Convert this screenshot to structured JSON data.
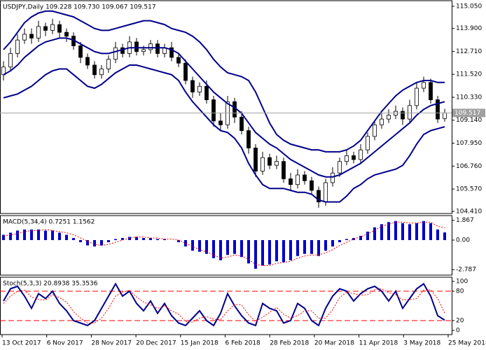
{
  "chart_data": [
    {
      "type": "candlestick",
      "title": "USDJPY,Daily  109.228 109.730 109.067 109.517",
      "open": [
        111.5,
        111.9,
        112.6,
        113.3,
        113.6,
        113.4,
        114.0,
        113.8,
        114.1,
        113.7,
        113.5,
        113.0,
        112.4,
        112.0,
        111.5,
        111.8,
        112.3,
        112.9,
        112.6,
        113.2,
        112.7,
        112.8,
        113.1,
        112.6,
        112.9,
        112.4,
        112.1,
        111.2,
        110.6,
        110.9,
        110.2,
        109.1,
        108.9,
        110.1,
        109.3,
        108.6,
        107.7,
        106.5,
        107.2,
        106.8,
        107.0,
        106.1,
        105.8,
        106.3,
        106.0,
        105.5,
        104.9,
        105.9,
        106.4,
        107.0,
        107.3,
        107.1,
        107.6,
        108.3,
        108.9,
        109.2,
        109.4,
        109.6,
        109.2,
        109.9,
        110.8,
        111.1,
        110.2,
        109.228
      ],
      "high": [
        112.2,
        112.9,
        113.6,
        113.9,
        113.9,
        114.3,
        114.2,
        114.4,
        114.3,
        113.9,
        113.7,
        113.2,
        112.6,
        112.2,
        112.0,
        112.5,
        113.2,
        113.1,
        113.5,
        113.4,
        113.0,
        113.3,
        113.3,
        113.1,
        113.2,
        112.6,
        112.3,
        111.4,
        111.1,
        111.2,
        110.4,
        109.5,
        110.4,
        110.3,
        109.6,
        108.8,
        107.9,
        107.5,
        107.4,
        107.3,
        107.2,
        106.4,
        106.6,
        106.5,
        106.2,
        105.7,
        106.1,
        106.7,
        107.2,
        107.6,
        107.5,
        107.9,
        108.5,
        109.1,
        109.5,
        109.7,
        109.9,
        109.8,
        110.2,
        111.1,
        111.4,
        111.3,
        110.4,
        109.73
      ],
      "low": [
        111.2,
        111.7,
        112.4,
        113.1,
        113.1,
        113.2,
        113.5,
        113.6,
        113.4,
        113.2,
        112.8,
        112.1,
        111.8,
        111.3,
        111.3,
        111.6,
        112.1,
        112.4,
        112.4,
        112.5,
        112.5,
        112.6,
        112.4,
        112.4,
        112.2,
        111.9,
        111.0,
        110.3,
        110.4,
        110.0,
        108.8,
        108.6,
        108.7,
        109.0,
        108.4,
        107.4,
        106.2,
        106.3,
        106.6,
        106.6,
        105.9,
        105.5,
        105.6,
        105.8,
        105.3,
        104.6,
        104.7,
        105.7,
        106.2,
        106.8,
        106.9,
        106.9,
        107.4,
        108.1,
        108.7,
        109.0,
        109.2,
        108.9,
        109.0,
        109.7,
        110.6,
        110.0,
        109.0,
        109.067
      ],
      "close": [
        111.9,
        112.6,
        113.3,
        113.6,
        113.4,
        114.0,
        113.8,
        114.1,
        113.7,
        113.5,
        113.0,
        112.4,
        112.0,
        111.5,
        111.8,
        112.3,
        112.9,
        112.6,
        113.2,
        112.7,
        112.8,
        113.1,
        112.6,
        112.9,
        112.4,
        112.1,
        111.2,
        110.6,
        110.9,
        110.2,
        109.1,
        108.9,
        110.1,
        109.3,
        108.6,
        107.7,
        106.5,
        107.2,
        106.8,
        107.0,
        106.1,
        105.8,
        106.3,
        106.0,
        105.5,
        104.9,
        105.9,
        106.4,
        107.0,
        107.3,
        107.1,
        107.6,
        108.3,
        108.9,
        109.2,
        109.4,
        109.6,
        109.2,
        109.9,
        110.8,
        111.1,
        110.2,
        109.2,
        109.517
      ],
      "up_color": "#ffffff",
      "down_color": "#000000",
      "series": [
        {
          "color": "#00008b",
          "values": [
            112.8,
            113.2,
            113.7,
            114.2,
            114.5,
            114.7,
            114.8,
            114.8,
            114.7,
            114.6,
            114.5,
            114.3,
            114.1,
            113.9,
            113.8,
            113.8,
            113.9,
            114.0,
            114.1,
            114.2,
            114.3,
            114.3,
            114.2,
            114.1,
            113.9,
            113.8,
            113.7,
            113.5,
            113.2,
            112.8,
            112.3,
            111.9,
            111.6,
            111.5,
            111.4,
            111.2,
            110.6,
            109.8,
            109.0,
            108.4,
            108.1,
            107.9,
            107.8,
            107.7,
            107.6,
            107.6,
            107.5,
            107.5,
            107.5,
            107.6,
            107.8,
            108.1,
            108.6,
            109.1,
            109.6,
            110.0,
            110.4,
            110.7,
            110.9,
            111.1,
            111.2,
            111.2,
            111.1,
            111.1
          ]
        },
        {
          "color": "#00008b",
          "values": [
            111.5,
            111.7,
            112.0,
            112.4,
            112.7,
            113.0,
            113.2,
            113.3,
            113.4,
            113.4,
            113.3,
            113.1,
            112.9,
            112.7,
            112.6,
            112.6,
            112.7,
            112.8,
            112.9,
            112.9,
            112.9,
            112.9,
            112.9,
            112.9,
            112.8,
            112.6,
            112.2,
            111.8,
            111.4,
            111.0,
            110.6,
            110.3,
            110.0,
            109.8,
            109.5,
            109.0,
            108.5,
            108.2,
            107.9,
            107.7,
            107.4,
            107.1,
            106.9,
            106.7,
            106.5,
            106.3,
            106.2,
            106.2,
            106.3,
            106.5,
            106.7,
            106.9,
            107.2,
            107.5,
            107.8,
            108.1,
            108.4,
            108.7,
            109.0,
            109.4,
            109.7,
            109.9,
            110.0,
            110.1
          ]
        },
        {
          "color": "#00008b",
          "values": [
            110.3,
            110.4,
            110.5,
            110.7,
            110.9,
            111.2,
            111.5,
            111.7,
            111.8,
            111.8,
            111.5,
            111.2,
            110.9,
            110.8,
            111.0,
            111.3,
            111.6,
            111.8,
            112.0,
            112.0,
            111.9,
            111.8,
            111.7,
            111.6,
            111.5,
            111.2,
            110.6,
            110.1,
            109.7,
            109.3,
            108.9,
            108.6,
            108.5,
            108.2,
            107.7,
            106.9,
            106.3,
            105.8,
            105.6,
            105.6,
            105.6,
            105.5,
            105.4,
            105.4,
            105.3,
            105.0,
            104.9,
            104.9,
            104.9,
            105.2,
            105.6,
            105.8,
            106.1,
            106.3,
            106.4,
            106.5,
            106.6,
            106.8,
            107.3,
            107.9,
            108.4,
            108.6,
            108.7,
            108.8
          ]
        }
      ],
      "last_price": 109.517,
      "ylim": [
        104.3,
        115.34
      ],
      "yticks": [
        {
          "value": 115.05,
          "label": "115.050"
        },
        {
          "value": 113.9,
          "label": "113.900"
        },
        {
          "value": 112.71,
          "label": "112.710"
        },
        {
          "value": 111.52,
          "label": "111.520"
        },
        {
          "value": 110.33,
          "label": "110.330"
        },
        {
          "value": 109.14,
          "label": "109.140"
        },
        {
          "value": 107.95,
          "label": "107.950"
        },
        {
          "value": 106.76,
          "label": "106.760"
        },
        {
          "value": 105.57,
          "label": "105.570"
        },
        {
          "value": 104.41,
          "label": "104.410"
        }
      ]
    },
    {
      "type": "bar",
      "title": "MACD(5,34,4) 0.7251 1.1562",
      "color": "#0000cd",
      "values": [
        0.5,
        0.7,
        0.9,
        1.0,
        1.0,
        1.0,
        0.9,
        0.9,
        0.7,
        0.5,
        0.2,
        -0.2,
        -0.5,
        -0.6,
        -0.5,
        -0.2,
        0.1,
        0.2,
        0.3,
        0.3,
        0.2,
        0.2,
        0.1,
        0.1,
        0.0,
        -0.2,
        -0.6,
        -1.0,
        -1.1,
        -1.3,
        -1.7,
        -1.9,
        -1.4,
        -1.3,
        -1.6,
        -2.2,
        -2.7,
        -2.4,
        -2.3,
        -2.0,
        -2.1,
        -1.9,
        -1.5,
        -1.3,
        -1.3,
        -1.5,
        -1.0,
        -0.6,
        -0.2,
        0.1,
        0.2,
        0.4,
        0.8,
        1.2,
        1.5,
        1.7,
        1.8,
        1.6,
        1.5,
        1.6,
        1.8,
        1.6,
        1.0,
        0.7251
      ],
      "series": [
        {
          "color": "#ff0000",
          "style": "dotted",
          "values": [
            0.4,
            0.5,
            0.6,
            0.8,
            0.9,
            0.9,
            1.0,
            0.9,
            0.8,
            0.7,
            0.5,
            0.2,
            -0.1,
            -0.4,
            -0.5,
            -0.4,
            -0.2,
            0.0,
            0.2,
            0.3,
            0.3,
            0.2,
            0.2,
            0.1,
            0.1,
            0.0,
            -0.3,
            -0.6,
            -0.9,
            -1.1,
            -1.4,
            -1.7,
            -1.6,
            -1.4,
            -1.5,
            -1.8,
            -2.3,
            -2.4,
            -2.4,
            -2.2,
            -2.1,
            -2.0,
            -1.7,
            -1.5,
            -1.4,
            -1.4,
            -1.2,
            -0.9,
            -0.5,
            -0.2,
            0.1,
            0.3,
            0.6,
            0.9,
            1.3,
            1.5,
            1.7,
            1.7,
            1.6,
            1.6,
            1.7,
            1.7,
            1.3,
            1.1562
          ]
        }
      ],
      "ylim": [
        -3.3,
        2.31
      ],
      "yticks": [
        1.867,
        {
          "value": 0,
          "label": "0.00"
        },
        -2.787
      ]
    },
    {
      "type": "line",
      "title": "Stoch(5,3,3) 20.8938 35.3536",
      "series": [
        {
          "color": "#00008b",
          "values": [
            60,
            85,
            90,
            70,
            45,
            75,
            65,
            80,
            55,
            40,
            20,
            15,
            10,
            20,
            45,
            70,
            95,
            70,
            80,
            55,
            40,
            60,
            35,
            55,
            30,
            15,
            10,
            25,
            40,
            20,
            10,
            35,
            75,
            50,
            30,
            15,
            10,
            55,
            45,
            40,
            15,
            20,
            55,
            45,
            20,
            10,
            45,
            70,
            85,
            80,
            60,
            75,
            85,
            90,
            80,
            60,
            80,
            45,
            65,
            85,
            95,
            70,
            30,
            20.8938
          ]
        },
        {
          "color": "#ff0000",
          "style": "dotted",
          "values": [
            55,
            70,
            80,
            82,
            68,
            63,
            62,
            73,
            67,
            58,
            38,
            25,
            15,
            15,
            25,
            45,
            70,
            78,
            82,
            68,
            58,
            52,
            45,
            50,
            40,
            33,
            18,
            17,
            25,
            28,
            23,
            22,
            40,
            53,
            52,
            32,
            18,
            27,
            37,
            47,
            33,
            25,
            30,
            40,
            40,
            25,
            25,
            42,
            67,
            78,
            75,
            72,
            73,
            83,
            85,
            77,
            73,
            62,
            63,
            65,
            82,
            83,
            65,
            35.3536
          ]
        }
      ],
      "levels": [
        20,
        80
      ],
      "level_color": "#ff0000",
      "ylim": [
        -8.6,
        108.6
      ],
      "yticks": [
        100,
        80,
        20,
        0
      ],
      "xtick_labels": [
        "13 Oct 2017",
        "6 Nov 2017",
        "28 Nov 2017",
        "20 Dec 2017",
        "15 Jan 2018",
        "6 Feb 2018",
        "28 Feb 2018",
        "20 Mar 2018",
        "11 Apr 2018",
        "3 May 2018",
        "25 May 2018"
      ]
    }
  ]
}
